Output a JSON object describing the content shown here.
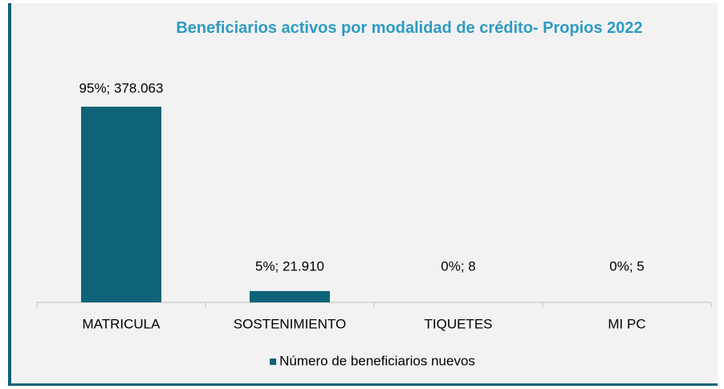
{
  "chart_data": {
    "type": "bar",
    "title": "Beneficiarios activos por modalidad de crédito- Propios 2022",
    "categories": [
      "MATRICULA",
      "SOSTENIMIENTO",
      "TIQUETES",
      "MI PC"
    ],
    "series": [
      {
        "name": "Número de beneficiarios nuevos",
        "color": "#0f6378",
        "values": [
          378063,
          21910,
          8,
          5
        ],
        "value_labels": [
          "95%; 378.063",
          "5%; 21.910",
          "0%; 8",
          "0%; 5"
        ]
      }
    ],
    "legend": "bottom"
  }
}
